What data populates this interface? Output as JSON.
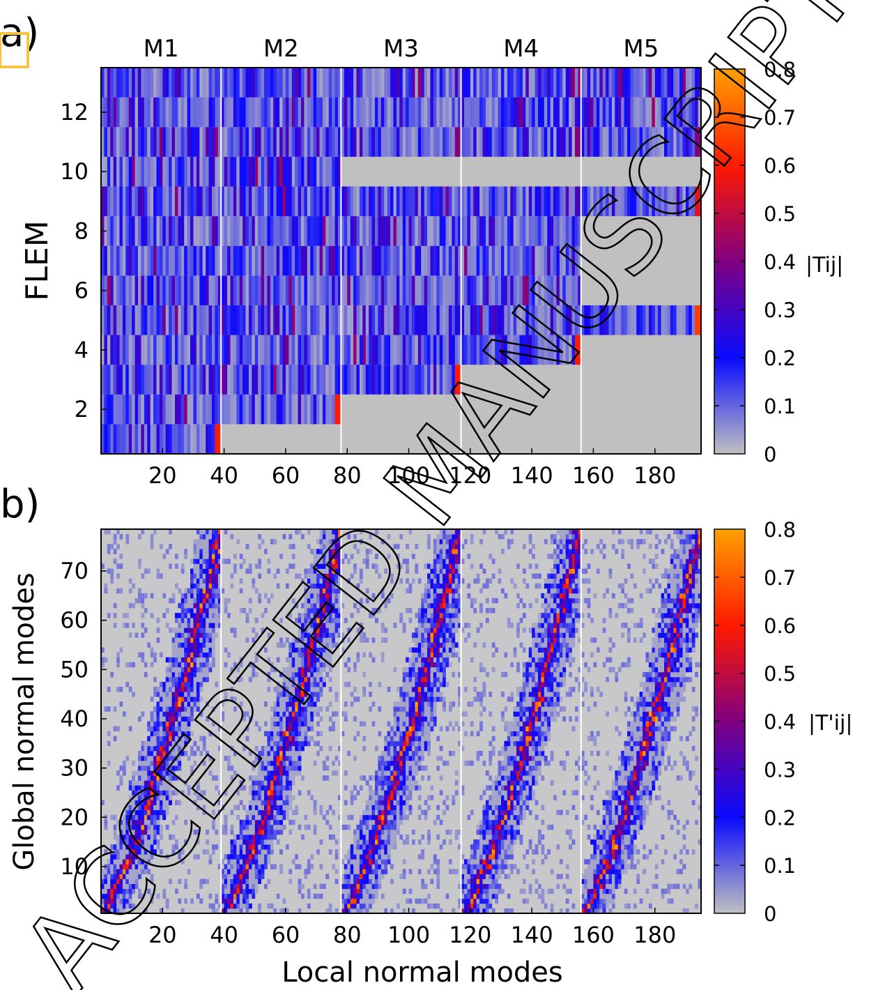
{
  "panels": {
    "a": {
      "label": "a)",
      "ylabel": "FLEM",
      "colorbar_label": "|Tij|",
      "colorbar_ticks": [
        "0",
        "0.1",
        "0.2",
        "0.3",
        "0.4",
        "0.5",
        "0.6",
        "0.7",
        "0.8"
      ]
    },
    "b": {
      "label": "b)",
      "ylabel": "Global normal modes",
      "xlabel": "Local normal modes",
      "colorbar_label": "|T'ij|",
      "colorbar_ticks": [
        "0",
        "0.1",
        "0.2",
        "0.3",
        "0.4",
        "0.5",
        "0.6",
        "0.7",
        "0.8"
      ]
    }
  },
  "watermark": "ACCEPTED MANUSCRIPT",
  "chart_data": [
    {
      "type": "heatmap",
      "panel": "a",
      "title": "",
      "group_labels": [
        "M1",
        "M2",
        "M3",
        "M4",
        "M5"
      ],
      "group_boundaries": [
        39,
        78,
        117,
        156
      ],
      "xlim": [
        0,
        195
      ],
      "ylim": [
        0.5,
        13.5
      ],
      "xticks": [
        20,
        40,
        60,
        80,
        100,
        120,
        140,
        160,
        180
      ],
      "yticks": [
        2,
        4,
        6,
        8,
        10,
        12
      ],
      "ylabel": "FLEM",
      "colorbar": {
        "label": "|Tij|",
        "range": [
          0,
          0.8
        ],
        "ticks": [
          0,
          0.1,
          0.2,
          0.3,
          0.4,
          0.5,
          0.6,
          0.7,
          0.8
        ]
      },
      "colormap": [
        "#c0c0c0",
        "#0a0aff",
        "#800080",
        "#ff1a00",
        "#ffa000"
      ],
      "blocks": [
        {
          "group": "M1",
          "rows": [
            1,
            13
          ],
          "peak_value": 0.6
        },
        {
          "group": "M2",
          "rows": [
            2,
            13
          ],
          "peak_value": 0.6
        },
        {
          "group": "M3",
          "rows": [
            3,
            9
          ],
          "peak_value": 0.6
        },
        {
          "group": "M3",
          "rows": [
            11,
            13
          ],
          "peak_value": 0.4
        },
        {
          "group": "M4",
          "rows": [
            4,
            8
          ],
          "peak_value": 0.6
        },
        {
          "group": "M4",
          "rows": [
            9,
            9
          ],
          "peak_value": 0.3
        },
        {
          "group": "M4",
          "rows": [
            11,
            13
          ],
          "peak_value": 0.4
        },
        {
          "group": "M5",
          "rows": [
            5,
            5
          ],
          "peak_value": 0.65
        },
        {
          "group": "M5",
          "rows": [
            9,
            9
          ],
          "peak_value": 0.55
        },
        {
          "group": "M5",
          "rows": [
            11,
            13
          ],
          "peak_value": 0.4
        }
      ]
    },
    {
      "type": "heatmap",
      "panel": "b",
      "title": "",
      "group_boundaries": [
        39,
        78,
        117,
        156
      ],
      "xlim": [
        0,
        195
      ],
      "ylim": [
        0.5,
        78.5
      ],
      "xticks": [
        20,
        40,
        60,
        80,
        100,
        120,
        140,
        160,
        180
      ],
      "yticks": [
        10,
        20,
        30,
        40,
        50,
        60,
        70
      ],
      "xlabel": "Local normal modes",
      "ylabel": "Global normal modes",
      "colorbar": {
        "label": "|T'ij|",
        "range": [
          0,
          0.8
        ],
        "ticks": [
          0,
          0.1,
          0.2,
          0.3,
          0.4,
          0.5,
          0.6,
          0.7,
          0.8
        ]
      },
      "colormap": [
        "#c0c0c0",
        "#0a0aff",
        "#800080",
        "#ff1a00",
        "#ffa000"
      ],
      "description_of_pattern": "in each of the 5 blocks, large values lie along a monotonic curve from the lower-left to the upper-right of the block"
    }
  ]
}
